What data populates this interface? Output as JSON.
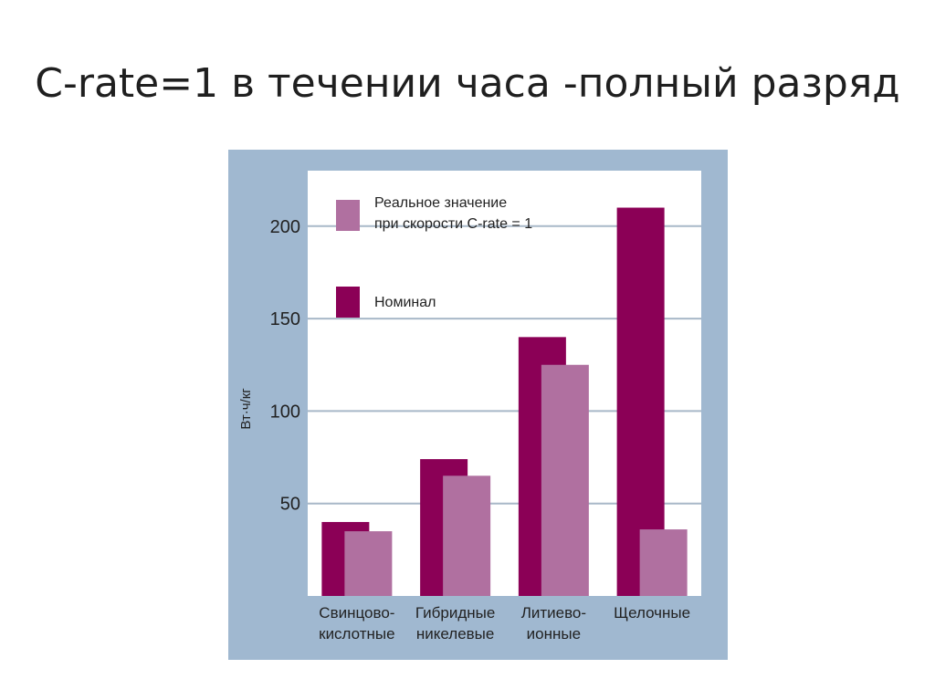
{
  "slide": {
    "title": "C-rate=1 в течении часа -полный разряд"
  },
  "chart_data": {
    "type": "bar",
    "ylabel": "Вт·ч/кг",
    "ylim": [
      0,
      230
    ],
    "yticks": [
      50,
      100,
      150,
      200
    ],
    "grid": true,
    "legend_position": "top-left",
    "categories": [
      [
        "Свинцово-",
        "кислотные"
      ],
      [
        "Гибридные",
        "никелевые"
      ],
      [
        "Литиево-",
        "ионные"
      ],
      [
        "Щелочные"
      ]
    ],
    "series": [
      {
        "name": "Номинал",
        "values": [
          40,
          74,
          140,
          210
        ],
        "color": "#8b0056"
      },
      {
        "name": "Реальное значение при скорости C-rate = 1",
        "values": [
          35,
          65,
          125,
          36
        ],
        "color": "#b070a0"
      }
    ],
    "legend": [
      {
        "lines": [
          "Реальное значение",
          "при скорости C-rate = 1"
        ],
        "color": "#b070a0"
      },
      {
        "lines": [
          "Номинал"
        ],
        "color": "#8b0056"
      }
    ],
    "colors": {
      "frame": "#a0b8d0",
      "plot_bg": "#ffffff",
      "grid": "#a8b8c8",
      "text": "#222222"
    }
  }
}
